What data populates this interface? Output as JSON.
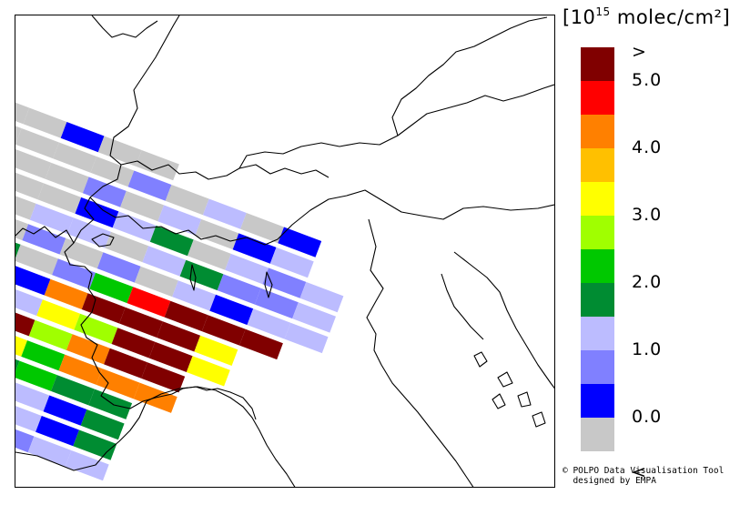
{
  "units": {
    "prefix": "[10",
    "exponent": "15",
    "suffix": " molec/cm²]"
  },
  "legend": {
    "bins": [
      {
        "color": "#800000",
        "label": ">"
      },
      {
        "color": "#ff0000",
        "label": "5.0"
      },
      {
        "color": "#ff8000",
        "label": ""
      },
      {
        "color": "#ffc000",
        "label": "4.0"
      },
      {
        "color": "#ffff00",
        "label": ""
      },
      {
        "color": "#a0ff00",
        "label": "3.0"
      },
      {
        "color": "#00c800",
        "label": ""
      },
      {
        "color": "#008c32",
        "label": "2.0"
      },
      {
        "color": "#bcbcff",
        "label": ""
      },
      {
        "color": "#8080ff",
        "label": "1.0"
      },
      {
        "color": "#0000ff",
        "label": ""
      },
      {
        "color": "#c8c8c8",
        "label": "0.0"
      }
    ],
    "below_label": "<"
  },
  "credit": {
    "line1": "© POLPO Data Visualisation Tool",
    "line2": "  designed by EMPA"
  },
  "swath": {
    "rows": [
      [
        "grey",
        "grey",
        "blue",
        "grey",
        "grey",
        "none",
        "none",
        "none",
        "none",
        "none"
      ],
      [
        "grey",
        "grey",
        "grey",
        "grey",
        "blue1",
        "grey",
        "lav",
        "grey",
        "blue",
        "none"
      ],
      [
        "grey",
        "grey",
        "grey",
        "blue1",
        "grey",
        "lav",
        "grey",
        "blue",
        "lav",
        "none"
      ],
      [
        "grey",
        "grey",
        "grey",
        "blue",
        "lav",
        "green2",
        "grey",
        "lav",
        "blue1",
        "lav"
      ],
      [
        "grey",
        "grey",
        "lav",
        "lav",
        "grey",
        "lav",
        "green2",
        "blue1",
        "blue1",
        "lav"
      ],
      [
        "blue",
        "grey",
        "blue1",
        "grey",
        "blue1",
        "grey",
        "lav",
        "blue",
        "lav",
        "lav"
      ],
      [
        "grey",
        "green2",
        "grey",
        "blue1",
        "green",
        "red",
        "dred",
        "dred",
        "dred",
        "none"
      ],
      [
        "yellow",
        "blue",
        "blue",
        "orange",
        "dred",
        "dred",
        "dred",
        "yellow",
        "none",
        "none"
      ],
      [
        "lime",
        "green2",
        "lav",
        "yellow",
        "lime",
        "dred",
        "dred",
        "yellow",
        "none",
        "none"
      ],
      [
        "green2",
        "blue1",
        "dred",
        "lime",
        "orange",
        "dred",
        "dred",
        "none",
        "none",
        "none"
      ],
      [
        "lav",
        "blue",
        "yellow",
        "green",
        "orange",
        "orange",
        "orange",
        "none",
        "none",
        "none"
      ],
      [
        "blue1",
        "blue",
        "green2",
        "green",
        "green2",
        "green2",
        "none",
        "none",
        "none",
        "none"
      ],
      [
        "lav",
        "blue1",
        "green",
        "lav",
        "blue",
        "green2",
        "none",
        "none",
        "none",
        "none"
      ],
      [
        "blue1",
        "orange",
        "orange",
        "lav",
        "blue",
        "green2",
        "none",
        "none",
        "none",
        "none"
      ],
      [
        "lav",
        "lav",
        "green",
        "blue1",
        "lav",
        "lav",
        "none",
        "none",
        "none",
        "none"
      ]
    ]
  }
}
